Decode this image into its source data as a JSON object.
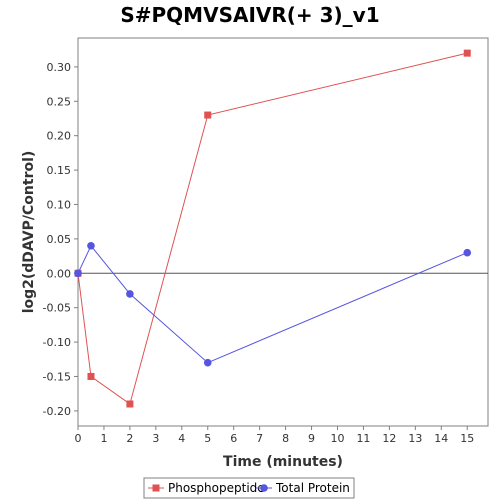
{
  "chart_data": {
    "type": "line",
    "title": "S#PQMVSAIVR(+ 3)_v1",
    "xlabel": "Time (minutes)",
    "ylabel": "log2(dDAVP/Control)",
    "xlim": [
      0,
      15.8
    ],
    "ylim": [
      -0.222,
      0.342
    ],
    "x_ticks": [
      0,
      1,
      2,
      3,
      4,
      5,
      6,
      7,
      8,
      9,
      10,
      11,
      12,
      13,
      14,
      15
    ],
    "y_ticks": [
      -0.2,
      -0.15,
      -0.1,
      -0.05,
      0.0,
      0.05,
      0.1,
      0.15,
      0.2,
      0.25,
      0.3
    ],
    "y_tick_labels": [
      "-0.20",
      "-0.15",
      "-0.10",
      "-0.05",
      "0.00",
      "0.05",
      "0.10",
      "0.15",
      "0.20",
      "0.25",
      "0.30"
    ],
    "zero_line": true,
    "grid": false,
    "legend_position": "bottom",
    "series": [
      {
        "name": "Phosphopeptide",
        "marker": "square",
        "color": "#e05252",
        "x": [
          0,
          0.5,
          2,
          5,
          15
        ],
        "y": [
          0.0,
          -0.15,
          -0.19,
          0.23,
          0.32
        ]
      },
      {
        "name": "Total Protein",
        "marker": "circle",
        "color": "#5555e0",
        "x": [
          0,
          0.5,
          2,
          5,
          15
        ],
        "y": [
          0.0,
          0.04,
          -0.03,
          -0.13,
          0.03
        ]
      }
    ]
  }
}
